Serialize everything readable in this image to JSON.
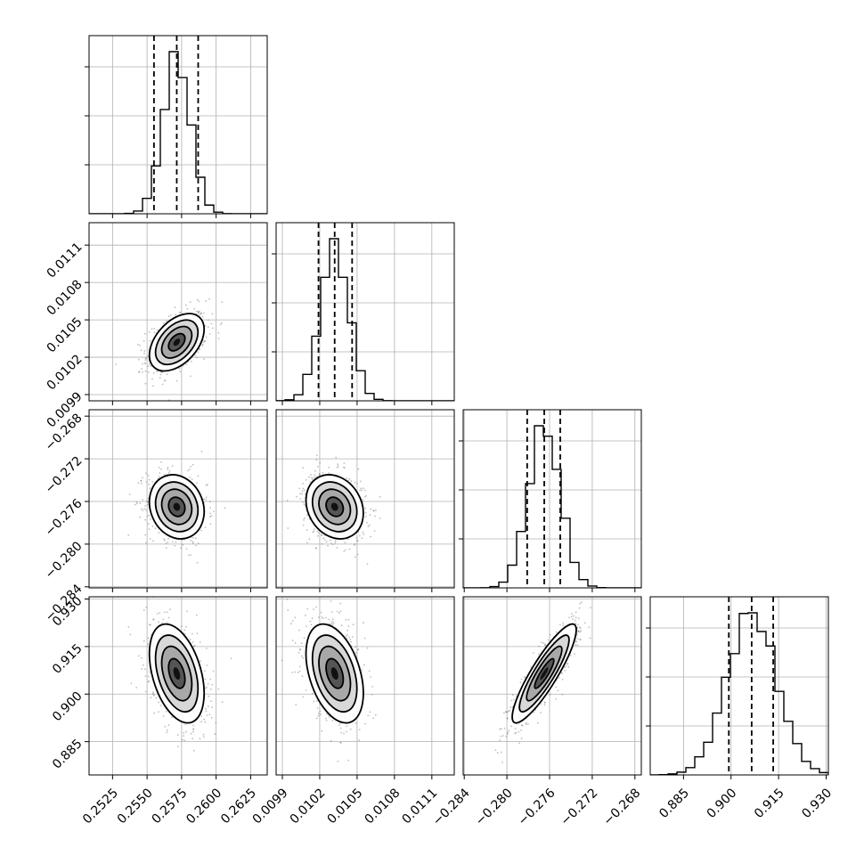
{
  "chart_data": {
    "type": "corner",
    "grid": true,
    "parameters": [
      {
        "ticks": [
          0.2525,
          0.255,
          0.2575,
          0.26,
          0.2625
        ],
        "tick_labels": [
          "0.2525",
          "0.2550",
          "0.2575",
          "0.2600",
          "0.2625"
        ],
        "range": [
          0.2508,
          0.2637
        ],
        "mean": 0.25715,
        "sd": 0.00099,
        "quantiles": [
          0.2555,
          0.25715,
          0.2587
        ]
      },
      {
        "ticks": [
          0.0099,
          0.0102,
          0.0105,
          0.0108,
          0.0111
        ],
        "tick_labels": [
          "0.0099",
          "0.0102",
          "0.0105",
          "0.0108",
          "0.0111"
        ],
        "range": [
          0.00985,
          0.01128
        ],
        "mean": 0.01032,
        "sd": 0.000115,
        "quantiles": [
          0.01019,
          0.01032,
          0.01046
        ]
      },
      {
        "ticks": [
          -0.284,
          -0.28,
          -0.276,
          -0.272,
          -0.268
        ],
        "tick_labels": [
          "−0.284",
          "−0.280",
          "−0.276",
          "−0.272",
          "−0.268"
        ],
        "range": [
          -0.2841,
          -0.2674
        ],
        "mean": -0.2765,
        "sd": 0.0015,
        "quantiles": [
          -0.2781,
          -0.2765,
          -0.275
        ]
      },
      {
        "ticks": [
          0.885,
          0.9,
          0.915,
          0.93
        ],
        "tick_labels": [
          "0.885",
          "0.900",
          "0.915",
          "0.930"
        ],
        "range": [
          0.8745,
          0.9307
        ],
        "mean": 0.9065,
        "sd": 0.0078,
        "quantiles": [
          0.8993,
          0.9065,
          0.9133
        ]
      }
    ],
    "correlations": [
      {
        "i": 1,
        "j": 0,
        "rho": 0.45
      },
      {
        "i": 2,
        "j": 0,
        "rho": -0.15
      },
      {
        "i": 2,
        "j": 1,
        "rho": -0.2
      },
      {
        "i": 3,
        "j": 0,
        "rho": -0.4
      },
      {
        "i": 3,
        "j": 1,
        "rho": -0.4
      },
      {
        "i": 3,
        "j": 2,
        "rho": 0.88
      }
    ],
    "colors": {
      "line": "#000000",
      "grid": "#b0b0b0",
      "points": "#6e6e6e"
    }
  }
}
